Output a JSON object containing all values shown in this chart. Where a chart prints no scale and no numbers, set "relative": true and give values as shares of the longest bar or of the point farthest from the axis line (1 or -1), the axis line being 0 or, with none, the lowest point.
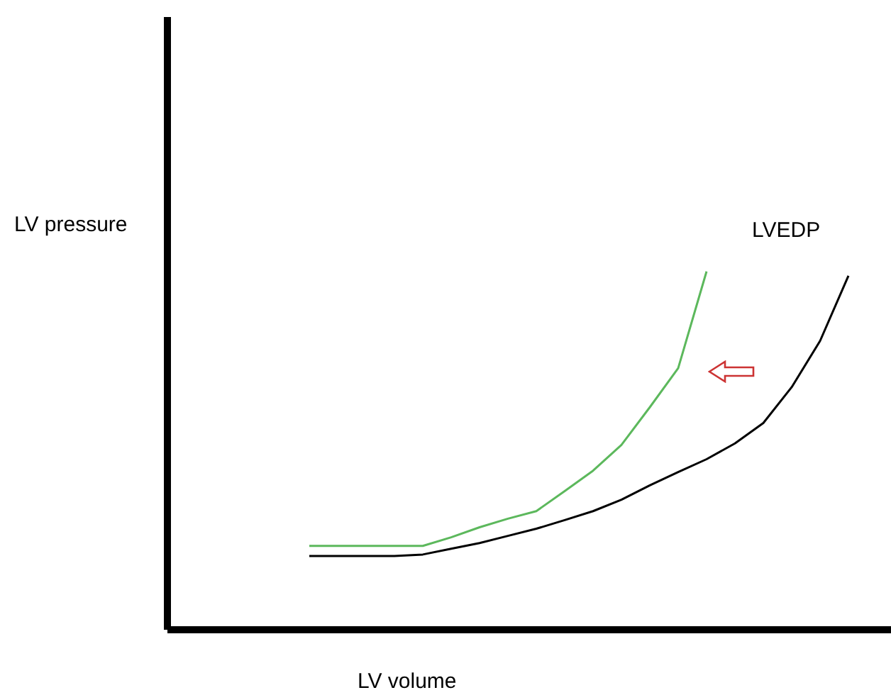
{
  "chart_data": {
    "type": "line",
    "relative": true,
    "xlabel": "LV volume",
    "ylabel": "LV pressure",
    "annotations": [
      "LVEDP"
    ],
    "legend": false,
    "grid": false,
    "marker": "none",
    "line_style": "solid",
    "categories": [
      null,
      null,
      null,
      null,
      null,
      null,
      null,
      null,
      null,
      null,
      null,
      null,
      null,
      null,
      null,
      null,
      null,
      null,
      null,
      null,
      null,
      null,
      null,
      null,
      null,
      null
    ],
    "series": [
      {
        "color": "#5cb85c",
        "values": [
          null,
          null,
          null,
          null,
          null,
          0.234,
          0.234,
          0.234,
          0.234,
          0.234,
          0.258,
          0.286,
          0.31,
          0.331,
          0.387,
          0.444,
          0.516,
          0.621,
          0.73,
          1,
          null,
          null,
          null,
          null,
          null,
          null
        ]
      },
      {
        "color": "#000000",
        "values": [
          null,
          null,
          null,
          null,
          null,
          0.206,
          0.206,
          0.206,
          0.206,
          0.21,
          0.226,
          0.242,
          0.262,
          0.282,
          0.306,
          0.331,
          0.363,
          0.403,
          0.44,
          0.476,
          0.52,
          0.577,
          0.677,
          0.806,
          0.988,
          null
        ]
      }
    ]
  }
}
